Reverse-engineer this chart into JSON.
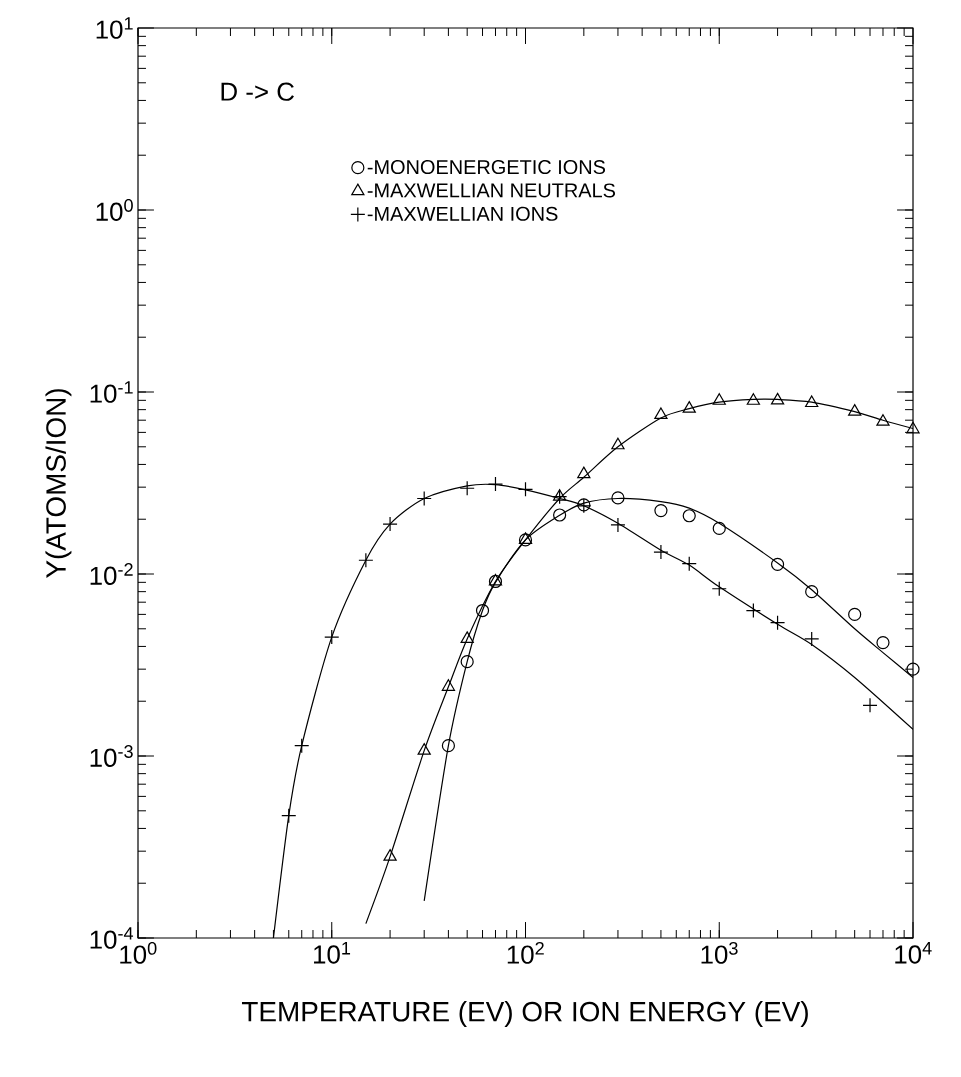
{
  "chart_data": {
    "type": "scatter",
    "xlabel": "TEMPERATURE (EV) OR ION ENERGY (EV)",
    "ylabel": "Y(ATOMS/ION)",
    "log": "xy",
    "legend": "top",
    "grid": false,
    "annotations": [
      "D -> C"
    ],
    "xlim": [
      1,
      10000
    ],
    "ylim": [
      0.0001,
      10
    ],
    "xticks": [
      {
        "value": 1,
        "label": "10$^{0}$"
      },
      {
        "value": 10,
        "label": "10$^{1}$"
      },
      {
        "value": 100,
        "label": "10$^{2}$"
      },
      {
        "value": 1000,
        "label": "10$^{3}$"
      },
      {
        "value": 10000,
        "label": "10$^{4}$"
      }
    ],
    "yticks": [
      {
        "value": 0.0001,
        "label": "10$^{-4}$"
      },
      {
        "value": 0.001,
        "label": "10$^{-3}$"
      },
      {
        "value": 0.01,
        "label": "10$^{-2}$"
      },
      {
        "value": 0.1,
        "label": "10$^{-1}$"
      },
      {
        "value": 1,
        "label": "10$^{0}$"
      },
      {
        "value": 10,
        "label": "10$^{1}$"
      }
    ],
    "series": [
      {
        "name": "-MONOENERGETIC IONS",
        "marker": "circle",
        "color": "#000000",
        "x": [
          40,
          50,
          60,
          70,
          100,
          150,
          200,
          300,
          500,
          700,
          1000,
          2000,
          3000,
          5000,
          7000,
          10000
        ],
        "values": [
          0.00114,
          0.0033,
          0.0063,
          0.0091,
          0.0154,
          0.0211,
          0.024,
          0.0262,
          0.0223,
          0.0209,
          0.0178,
          0.0113,
          0.008,
          0.006,
          0.0042,
          0.003
        ]
      },
      {
        "name": "-MAXWELLIAN NEUTRALS",
        "marker": "triangle",
        "color": "#000000",
        "x": [
          20,
          30,
          40,
          50,
          70,
          100,
          150,
          200,
          300,
          500,
          700,
          1000,
          1500,
          2000,
          3000,
          5000,
          7000,
          10000
        ],
        "values": [
          0.00028,
          0.00107,
          0.0024,
          0.0044,
          0.0091,
          0.0154,
          0.0266,
          0.0354,
          0.051,
          0.0748,
          0.081,
          0.0895,
          0.0895,
          0.09,
          0.087,
          0.078,
          0.0687,
          0.0624
        ]
      },
      {
        "name": "-MAXWELLIAN IONS",
        "marker": "cross",
        "color": "#000000",
        "x": [
          6,
          7,
          10,
          15,
          20,
          30,
          50,
          70,
          100,
          150,
          200,
          300,
          500,
          700,
          1000,
          1500,
          2000,
          3000,
          6000
        ],
        "values": [
          0.00047,
          0.00114,
          0.0045,
          0.0119,
          0.0188,
          0.026,
          0.0296,
          0.0312,
          0.0292,
          0.0266,
          0.0237,
          0.0186,
          0.0132,
          0.0114,
          0.0083,
          0.0063,
          0.0054,
          0.0044,
          0.0019
        ]
      },
      {
        "type": "line",
        "marker": "none",
        "color": "#000000",
        "x": [
          30,
          40,
          50,
          60,
          70,
          100,
          150,
          200,
          300,
          500,
          700,
          1000,
          2000,
          3000,
          5000,
          7000,
          10000
        ],
        "values": [
          0.00016,
          0.00114,
          0.0033,
          0.0063,
          0.009,
          0.0154,
          0.021,
          0.0245,
          0.026,
          0.025,
          0.023,
          0.019,
          0.0115,
          0.0082,
          0.005,
          0.0037,
          0.0027
        ]
      },
      {
        "type": "line",
        "marker": "none",
        "color": "#000000",
        "x": [
          15,
          20,
          30,
          40,
          50,
          70,
          100,
          150,
          200,
          300,
          500,
          700,
          1000,
          1500,
          2000,
          3000,
          5000,
          7000,
          10000
        ],
        "values": [
          0.00012,
          0.00028,
          0.00107,
          0.0024,
          0.0044,
          0.0091,
          0.0154,
          0.026,
          0.034,
          0.05,
          0.072,
          0.081,
          0.088,
          0.091,
          0.091,
          0.088,
          0.078,
          0.07,
          0.063
        ]
      },
      {
        "type": "line",
        "marker": "none",
        "color": "#000000",
        "x": [
          5,
          6,
          7,
          10,
          15,
          20,
          30,
          50,
          70,
          100,
          150,
          200,
          300,
          500,
          700,
          1000,
          2000,
          3000,
          5000,
          10000
        ],
        "values": [
          0.0001,
          0.00047,
          0.00114,
          0.0045,
          0.0119,
          0.0188,
          0.026,
          0.0305,
          0.031,
          0.029,
          0.026,
          0.0237,
          0.019,
          0.0135,
          0.0112,
          0.0085,
          0.0053,
          0.0041,
          0.0027,
          0.0014
        ]
      }
    ]
  }
}
